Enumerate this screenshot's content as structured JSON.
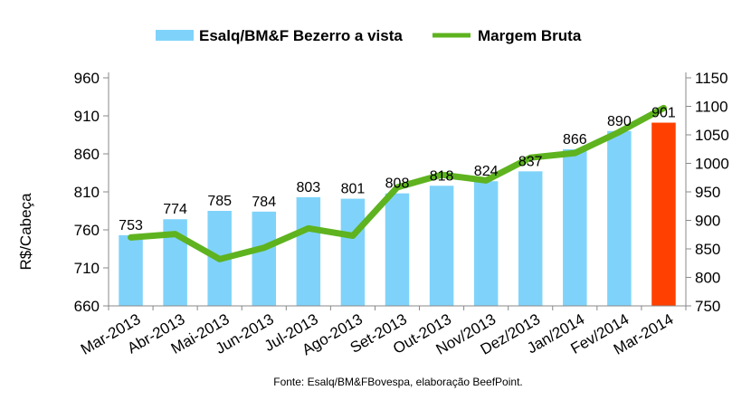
{
  "chart_data": {
    "type": "bar",
    "categories": [
      "Mar-2013",
      "Abr-2013",
      "Mai-2013",
      "Jun-2013",
      "Jul-2013",
      "Ago-2013",
      "Set-2013",
      "Out-2013",
      "Nov/2013",
      "Dez/2013",
      "Jan/2014",
      "Fev/2014",
      "Mar-2014"
    ],
    "series": [
      {
        "name": "Esalq/BM&F Bezerro a vista",
        "type": "bar",
        "axis": "left",
        "color": "#7fd3fb",
        "highlight_color": "#ff4000",
        "highlight_index": 12,
        "values": [
          753,
          774,
          785,
          784,
          803,
          801,
          808,
          818,
          824,
          837,
          866,
          890,
          901
        ]
      },
      {
        "name": "Margem Bruta",
        "type": "line",
        "axis": "right",
        "color": "#5eb31f",
        "values": [
          870,
          876,
          832,
          852,
          886,
          873,
          958,
          980,
          970,
          1010,
          1018,
          1055,
          1097
        ]
      }
    ],
    "ylabel": "R$/Cabeça",
    "ylim": [
      660,
      960
    ],
    "y_ticks": [
      "660",
      "710",
      "760",
      "810",
      "860",
      "910",
      "960"
    ],
    "y2lim": [
      750,
      1150
    ],
    "y2_ticks": [
      "750",
      "800",
      "850",
      "900",
      "950",
      "1000",
      "1050",
      "1100",
      "1150"
    ],
    "legend": "top",
    "grid": false,
    "source": "Fonte: Esalq/BM&FBovespa, elaboração BeefPoint."
  }
}
